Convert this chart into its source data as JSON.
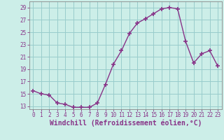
{
  "x": [
    0,
    1,
    2,
    3,
    4,
    5,
    6,
    7,
    8,
    9,
    10,
    11,
    12,
    13,
    14,
    15,
    16,
    17,
    18,
    19,
    20,
    21,
    22,
    23
  ],
  "y": [
    15.5,
    15.0,
    14.8,
    13.5,
    13.3,
    12.8,
    12.8,
    12.8,
    13.5,
    16.5,
    19.8,
    22.0,
    24.8,
    26.5,
    27.2,
    28.0,
    28.8,
    29.0,
    28.8,
    23.5,
    20.0,
    21.5,
    22.0,
    19.5
  ],
  "line_color": "#883388",
  "marker": "+",
  "marker_size": 4,
  "marker_linewidth": 1.2,
  "bg_color": "#cceee8",
  "grid_color": "#99cccc",
  "xlabel": "Windchill (Refroidissement éolien,°C)",
  "xlim": [
    -0.5,
    23.5
  ],
  "ylim": [
    12.5,
    30.0
  ],
  "yticks": [
    13,
    15,
    17,
    19,
    21,
    23,
    25,
    27,
    29
  ],
  "xticks": [
    0,
    1,
    2,
    3,
    4,
    5,
    6,
    7,
    8,
    9,
    10,
    11,
    12,
    13,
    14,
    15,
    16,
    17,
    18,
    19,
    20,
    21,
    22,
    23
  ],
  "tick_color": "#883388",
  "tick_fontsize": 5.5,
  "xlabel_fontsize": 7.0,
  "spine_color": "#888888",
  "linewidth": 1.0
}
